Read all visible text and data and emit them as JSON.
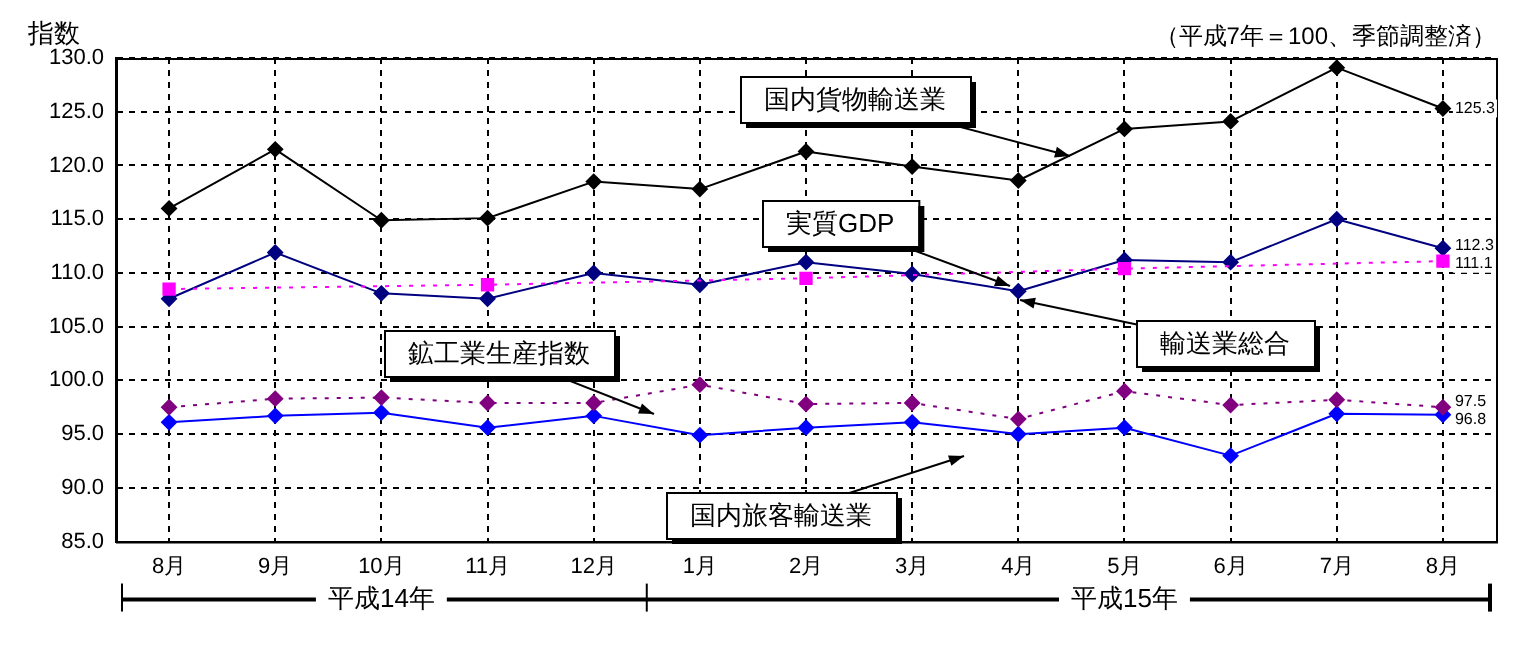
{
  "chart_data": {
    "type": "line",
    "ylabel": "指数",
    "subtitle": "（平成7年＝100、季節調整済）",
    "categories": [
      "8月",
      "9月",
      "10月",
      "11月",
      "12月",
      "1月",
      "2月",
      "3月",
      "4月",
      "5月",
      "6月",
      "7月",
      "8月"
    ],
    "series": [
      {
        "name": "国内貨物輸送業",
        "color": "#000000",
        "marker": "diamond",
        "line_style": "solid",
        "values": [
          116.0,
          121.5,
          114.9,
          115.1,
          118.5,
          117.8,
          121.3,
          119.9,
          118.6,
          123.4,
          124.1,
          129.1,
          125.3
        ],
        "value_labels": [
          null,
          null,
          null,
          null,
          null,
          null,
          null,
          null,
          null,
          null,
          null,
          null,
          "125.3"
        ]
      },
      {
        "name": "実質GDP",
        "color": "#ff00ff",
        "marker": "square",
        "line_style": "dotted",
        "values": [
          108.5,
          null,
          null,
          108.9,
          null,
          null,
          109.5,
          null,
          null,
          110.4,
          null,
          null,
          111.1
        ],
        "value_labels": [
          null,
          null,
          null,
          null,
          null,
          null,
          null,
          null,
          null,
          null,
          null,
          null,
          "111.1"
        ]
      },
      {
        "name": "輸送業総合",
        "color": "#000080",
        "marker": "diamond",
        "line_style": "solid",
        "values": [
          107.6,
          111.9,
          108.1,
          107.6,
          110.0,
          108.9,
          111.0,
          109.9,
          108.3,
          111.2,
          111.0,
          115.0,
          112.3
        ],
        "value_labels": [
          null,
          null,
          null,
          null,
          null,
          null,
          null,
          null,
          null,
          null,
          null,
          null,
          "112.3"
        ]
      },
      {
        "name": "鉱工業生産指数",
        "color": "#800080",
        "marker": "diamond",
        "line_style": "dotted",
        "values": [
          97.5,
          98.3,
          98.4,
          97.9,
          97.9,
          99.6,
          97.8,
          97.9,
          96.4,
          99.0,
          97.7,
          98.2,
          97.5
        ],
        "value_labels": [
          null,
          null,
          null,
          null,
          null,
          null,
          null,
          null,
          null,
          null,
          null,
          null,
          "97.5"
        ]
      },
      {
        "name": "国内旅客輸送業",
        "color": "#0000ff",
        "marker": "diamond",
        "line_style": "solid",
        "values": [
          96.1,
          96.7,
          97.0,
          95.6,
          96.7,
          94.9,
          95.6,
          96.1,
          95.0,
          95.6,
          93.0,
          96.9,
          96.8
        ],
        "value_labels": [
          null,
          null,
          null,
          null,
          null,
          null,
          null,
          null,
          null,
          null,
          null,
          null,
          "96.8"
        ]
      }
    ],
    "ylim": [
      85,
      130
    ],
    "yticks": [
      {
        "value": 85,
        "label": "85.0"
      },
      {
        "value": 90,
        "label": "90.0"
      },
      {
        "value": 95,
        "label": "95.0"
      },
      {
        "value": 100,
        "label": "100.0"
      },
      {
        "value": 105,
        "label": "105.0"
      },
      {
        "value": 110,
        "label": "110.0"
      },
      {
        "value": 115,
        "label": "115.0"
      },
      {
        "value": 120,
        "label": "120.0"
      },
      {
        "value": 125,
        "label": "125.0"
      },
      {
        "value": 130,
        "label": "130.0"
      }
    ],
    "grid": true,
    "legend": false,
    "annotations": [
      "平成14年",
      "平成15年"
    ]
  }
}
